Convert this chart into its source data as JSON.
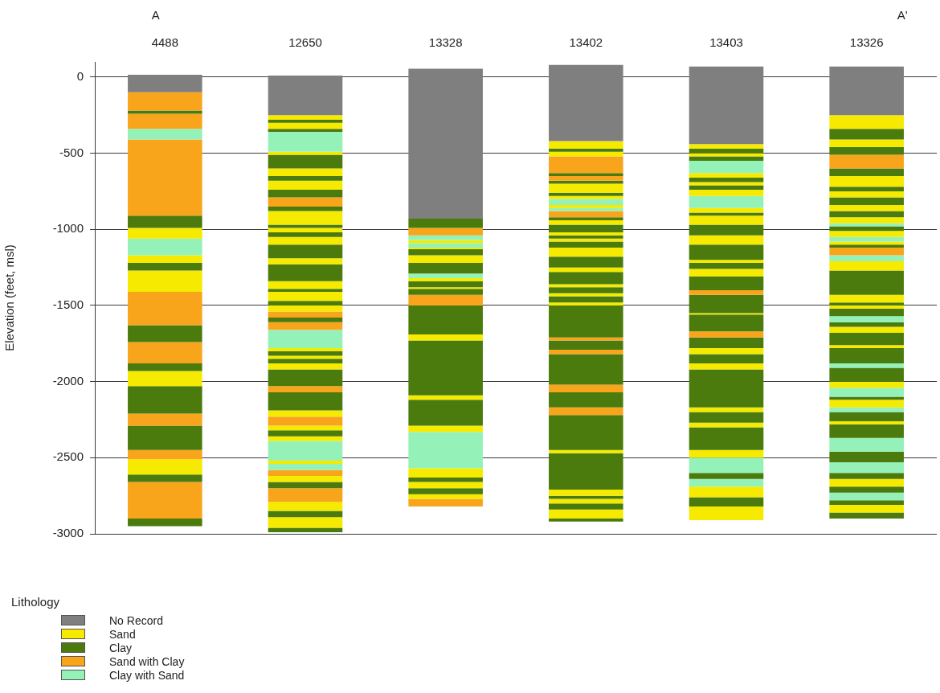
{
  "chart_data": {
    "type": "bar",
    "ylabel": "Elevation (feet, msl)",
    "legend_title": "Lithology",
    "legend": "bottom left",
    "grid": "y",
    "categories": [
      "4488",
      "12650",
      "13328",
      "13402",
      "13403",
      "13326"
    ],
    "annotations": [
      "A",
      "A'"
    ],
    "ylim": [
      -3000,
      100
    ],
    "yticks": [
      -3000,
      -2500,
      -2000,
      -1500,
      -1000,
      -500,
      0
    ],
    "series": [
      {
        "name": "No Record",
        "color": "#7f7f7f",
        "values": [
          null,
          null,
          null,
          null,
          null,
          null
        ]
      },
      {
        "name": "Sand",
        "color": "#f5ea00",
        "values": [
          null,
          null,
          null,
          null,
          null,
          null
        ]
      },
      {
        "name": "Clay",
        "color": "#4b7b0d",
        "values": [
          null,
          null,
          null,
          null,
          null,
          null
        ]
      },
      {
        "name": "Sand with Clay",
        "color": "#f8a51b",
        "values": [
          null,
          null,
          null,
          null,
          null,
          null
        ]
      },
      {
        "name": "Clay with Sand",
        "color": "#94f2b8",
        "values": [
          null,
          null,
          null,
          null,
          null,
          null
        ]
      },
      {
        "base": [
          15,
          10,
          55,
          80,
          70,
          70
        ],
        "values": [
          -115,
          -260,
          -985,
          -500,
          -510,
          -320
        ],
        "colors": [
          "#7f7f7f",
          "#7f7f7f",
          "#7f7f7f",
          "#7f7f7f",
          "#7f7f7f",
          "#7f7f7f"
        ]
      },
      {
        "base": [
          -100,
          -250,
          -930,
          -420,
          -440,
          -250
        ],
        "values": [
          -120,
          -30,
          -60,
          -50,
          -30,
          -90
        ],
        "colors": [
          "#f8a51b",
          "#f5ea00",
          "#4b7b0d",
          "#f5ea00",
          "#f5ea00",
          "#f5ea00"
        ]
      },
      {
        "base": [
          -220,
          -280,
          -990,
          -470,
          -470,
          -340
        ],
        "values": [
          -20,
          -20,
          -50,
          -20,
          -30,
          -70
        ],
        "colors": [
          "#4b7b0d",
          "#4b7b0d",
          "#f8a51b",
          "#4b7b0d",
          "#4b7b0d",
          "#4b7b0d"
        ]
      },
      {
        "base": [
          -240,
          -300,
          -1040,
          -490,
          -500,
          -410
        ],
        "values": [
          -100,
          -40,
          -30,
          -30,
          -20,
          -50
        ],
        "colors": [
          "#f8a51b",
          "#f5ea00",
          "#94f2b8",
          "#f5ea00",
          "#f5ea00",
          "#f5ea00"
        ]
      },
      {
        "base": [
          -340,
          -340,
          -1070,
          -520,
          -520,
          -460
        ],
        "values": [
          -70,
          -20,
          -20,
          -110,
          -30,
          -50
        ],
        "colors": [
          "#94f2b8",
          "#4b7b0d",
          "#f5ea00",
          "#f8a51b",
          "#4b7b0d",
          "#4b7b0d"
        ]
      },
      {
        "base": [
          -410,
          -360,
          -1090,
          -630,
          -550,
          -510
        ],
        "values": [
          -500,
          -130,
          -30,
          -20,
          -80,
          -90
        ],
        "colors": [
          "#f8a51b",
          "#94f2b8",
          "#94f2b8",
          "#4b7b0d",
          "#94f2b8",
          "#f8a51b"
        ]
      },
      {
        "base": [
          -910,
          -490,
          -1120,
          -650,
          -630,
          -600
        ],
        "values": [
          -80,
          -20,
          -10,
          -30,
          -30,
          -50
        ],
        "colors": [
          "#4b7b0d",
          "#f5ea00",
          "#f5ea00",
          "#f8a51b",
          "#f5ea00",
          "#4b7b0d"
        ]
      },
      {
        "base": [
          -990,
          -510,
          -1130,
          -680,
          -660,
          -650
        ],
        "values": [
          -70,
          -90,
          -40,
          -20,
          -30,
          -70
        ],
        "colors": [
          "#f5ea00",
          "#4b7b0d",
          "#4b7b0d",
          "#4b7b0d",
          "#4b7b0d",
          "#f5ea00"
        ]
      },
      {
        "base": [
          -1060,
          -600,
          -1170,
          -700,
          -690,
          -720
        ],
        "values": [
          -110,
          -50,
          -50,
          -60,
          -20,
          -30
        ],
        "colors": [
          "#94f2b8",
          "#f5ea00",
          "#f5ea00",
          "#f5ea00",
          "#f5ea00",
          "#4b7b0d"
        ]
      },
      {
        "base": [
          -1170,
          -650,
          -1220,
          -760,
          -710,
          -750
        ],
        "values": [
          -50,
          -30,
          -70,
          -20,
          -30,
          -40
        ],
        "colors": [
          "#f5ea00",
          "#4b7b0d",
          "#4b7b0d",
          "#4b7b0d",
          "#4b7b0d",
          "#f5ea00"
        ]
      },
      {
        "base": [
          -1220,
          -680,
          -1290,
          -780,
          -740,
          -790
        ],
        "values": [
          -50,
          -60,
          -30,
          -20,
          -40,
          -50
        ],
        "colors": [
          "#4b7b0d",
          "#f5ea00",
          "#94f2b8",
          "#f5ea00",
          "#f5ea00",
          "#4b7b0d"
        ]
      },
      {
        "base": [
          -1270,
          -740,
          -1320,
          -800,
          -780,
          -840
        ],
        "values": [
          -140,
          -50,
          -20,
          -40,
          -80,
          -40
        ],
        "colors": [
          "#f5ea00",
          "#4b7b0d",
          "#f5ea00",
          "#94f2b8",
          "#94f2b8",
          "#f5ea00"
        ]
      },
      {
        "base": [
          -1410,
          -790,
          -1340,
          -840,
          -860,
          -880
        ],
        "values": [
          -220,
          -60,
          -40,
          -20,
          -30,
          -40
        ],
        "colors": [
          "#f8a51b",
          "#f8a51b",
          "#4b7b0d",
          "#f5ea00",
          "#f5ea00",
          "#4b7b0d"
        ]
      },
      {
        "base": [
          -1630,
          -850,
          -1380,
          -860,
          -890,
          -920
        ],
        "values": [
          -110,
          -30,
          -10,
          -20,
          -20,
          -40
        ],
        "colors": [
          "#4b7b0d",
          "#4b7b0d",
          "#f5ea00",
          "#94f2b8",
          "#4b7b0d",
          "#f5ea00"
        ]
      },
      {
        "base": [
          -1740,
          -880,
          -1390,
          -880,
          -910,
          -960
        ],
        "values": [
          -140,
          -90,
          -40,
          -40,
          -60,
          -20
        ],
        "colors": [
          "#f8a51b",
          "#f5ea00",
          "#4b7b0d",
          "#f8a51b",
          "#f5ea00",
          "#94f2b8"
        ]
      },
      {
        "base": [
          -1880,
          -970,
          -1430,
          -920,
          -970,
          -980
        ],
        "values": [
          -50,
          -20,
          -70,
          -20,
          -70,
          -30
        ],
        "colors": [
          "#4b7b0d",
          "#4b7b0d",
          "#f8a51b",
          "#4b7b0d",
          "#4b7b0d",
          "#4b7b0d"
        ]
      },
      {
        "base": [
          -1930,
          -990,
          -1500,
          -940,
          -1040,
          -1010
        ],
        "values": [
          -100,
          -30,
          -190,
          -30,
          -60,
          -40
        ],
        "colors": [
          "#f5ea00",
          "#f5ea00",
          "#4b7b0d",
          "#f5ea00",
          "#f5ea00",
          "#f5ea00"
        ]
      },
      {
        "base": [
          -2030,
          -1020,
          -1690,
          -970,
          -1100,
          -1050
        ],
        "values": [
          -180,
          -30,
          -40,
          -50,
          -100,
          -30
        ],
        "colors": [
          "#4b7b0d",
          "#4b7b0d",
          "#f5ea00",
          "#4b7b0d",
          "#4b7b0d",
          "#94f2b8"
        ]
      },
      {
        "base": [
          -2210,
          -1050,
          -1730,
          -1020,
          -1200,
          -1080
        ],
        "values": [
          -80,
          -50,
          -360,
          -20,
          -20,
          -20
        ],
        "colors": [
          "#f8a51b",
          "#f5ea00",
          "#4b7b0d",
          "#f5ea00",
          "#f5ea00",
          "#f5ea00"
        ]
      },
      {
        "base": [
          -2290,
          -1100,
          -2090,
          -1040,
          -1220,
          -1100
        ],
        "values": [
          -160,
          -90,
          -30,
          -20,
          -40,
          -20
        ],
        "colors": [
          "#4b7b0d",
          "#4b7b0d",
          "#f5ea00",
          "#4b7b0d",
          "#4b7b0d",
          "#4b7b0d"
        ]
      },
      {
        "base": [
          -2450,
          -1190,
          -2120,
          -1060,
          -1260,
          -1120
        ],
        "values": [
          -60,
          -40,
          -170,
          -20,
          -50,
          -50
        ],
        "colors": [
          "#f8a51b",
          "#f5ea00",
          "#4b7b0d",
          "#f5ea00",
          "#f5ea00",
          "#f8a51b"
        ]
      },
      {
        "base": [
          -2510,
          -1230,
          -2290,
          -1080,
          -1310,
          -1170
        ],
        "values": [
          -100,
          -110,
          -40,
          -40,
          -90,
          -40
        ],
        "colors": [
          "#f5ea00",
          "#4b7b0d",
          "#f5ea00",
          "#4b7b0d",
          "#4b7b0d",
          "#94f2b8"
        ]
      },
      {
        "base": [
          -2610,
          -1340,
          -2330,
          -1120,
          -1400,
          -1210
        ],
        "values": [
          -50,
          -50,
          -240,
          -60,
          -30,
          -60
        ],
        "colors": [
          "#4b7b0d",
          "#f5ea00",
          "#94f2b8",
          "#f5ea00",
          "#f8a51b",
          "#f5ea00"
        ]
      },
      {
        "base": [
          -2660,
          -1390,
          -2570,
          -1180,
          -1430,
          -1270
        ],
        "values": [
          -240,
          -20,
          -60,
          -70,
          -120,
          -160
        ],
        "colors": [
          "#f8a51b",
          "#4b7b0d",
          "#f5ea00",
          "#4b7b0d",
          "#4b7b0d",
          "#4b7b0d"
        ]
      },
      {
        "base": [
          -2900,
          -1410,
          -2630,
          -1250,
          -1550,
          -1430
        ],
        "values": [
          -50,
          -60,
          -30,
          -30,
          -10,
          -50
        ],
        "colors": [
          "#4b7b0d",
          "#f5ea00",
          "#4b7b0d",
          "#f5ea00",
          "#f5ea00",
          "#f5ea00"
        ]
      },
      {
        "base": [
          null,
          -1470,
          -2660,
          -1280,
          -1560,
          -1480
        ],
        "values": [
          null,
          -30,
          -40,
          -80,
          -110,
          -20
        ],
        "colors": [
          null,
          "#4b7b0d",
          "#f5ea00",
          "#4b7b0d",
          "#4b7b0d",
          "#4b7b0d"
        ]
      },
      {
        "base": [
          null,
          -1500,
          -2700,
          -1360,
          -1670,
          -1500
        ],
        "values": [
          null,
          -40,
          -40,
          -20,
          -40,
          -20
        ],
        "colors": [
          null,
          "#f5ea00",
          "#4b7b0d",
          "#f5ea00",
          "#f8a51b",
          "#f5ea00"
        ]
      },
      {
        "base": [
          null,
          -1540,
          -2740,
          -1380,
          -1710,
          -1520
        ],
        "values": [
          null,
          -40,
          -30,
          -40,
          -70,
          -50
        ],
        "colors": [
          null,
          "#f8a51b",
          "#f5ea00",
          "#4b7b0d",
          "#4b7b0d",
          "#4b7b0d"
        ]
      },
      {
        "base": [
          null,
          -1580,
          -2770,
          -1420,
          -1780,
          -1570
        ],
        "values": [
          null,
          -30,
          -50,
          -20,
          -40,
          -40
        ],
        "colors": [
          null,
          "#4b7b0d",
          "#f8a51b",
          "#f5ea00",
          "#f5ea00",
          "#94f2b8"
        ]
      },
      {
        "base": [
          null,
          -1610,
          null,
          -1440,
          -1820,
          -1610
        ],
        "values": [
          null,
          -50,
          null,
          -40,
          -60,
          -30
        ],
        "colors": [
          null,
          "#f8a51b",
          null,
          "#4b7b0d",
          "#4b7b0d",
          "#4b7b0d"
        ]
      },
      {
        "base": [
          null,
          -1660,
          null,
          -1480,
          -1880,
          -1640
        ],
        "values": [
          null,
          -120,
          null,
          -20,
          -40,
          -40
        ],
        "colors": [
          null,
          "#94f2b8",
          null,
          "#f5ea00",
          "#f5ea00",
          "#f5ea00"
        ]
      },
      {
        "base": [
          null,
          -1780,
          null,
          -1500,
          -1920,
          -1680
        ],
        "values": [
          null,
          -20,
          null,
          -210,
          -250,
          -80
        ],
        "colors": [
          null,
          "#f5ea00",
          null,
          "#4b7b0d",
          "#4b7b0d",
          "#4b7b0d"
        ]
      },
      {
        "base": [
          null,
          -1800,
          null,
          -1710,
          -2170,
          -1760
        ],
        "values": [
          null,
          -30,
          null,
          -20,
          -30,
          -20
        ],
        "colors": [
          null,
          "#4b7b0d",
          null,
          "#f8a51b",
          "#f5ea00",
          "#f5ea00"
        ]
      },
      {
        "base": [
          null,
          -1830,
          null,
          -1730,
          -2200,
          -1780
        ],
        "values": [
          null,
          -20,
          null,
          -60,
          -70,
          -100
        ],
        "colors": [
          null,
          "#f5ea00",
          null,
          "#4b7b0d",
          "#4b7b0d",
          "#4b7b0d"
        ]
      },
      {
        "base": [
          null,
          -1850,
          null,
          -1790,
          -2270,
          -1880
        ],
        "values": [
          null,
          -30,
          null,
          -30,
          -30,
          -30
        ],
        "colors": [
          null,
          "#4b7b0d",
          null,
          "#f8a51b",
          "#f5ea00",
          "#94f2b8"
        ]
      },
      {
        "base": [
          null,
          -1880,
          null,
          -1820,
          -2300,
          -1910
        ],
        "values": [
          null,
          -40,
          null,
          -200,
          -150,
          -90
        ],
        "colors": [
          null,
          "#f5ea00",
          null,
          "#4b7b0d",
          "#4b7b0d",
          "#4b7b0d"
        ]
      },
      {
        "base": [
          null,
          -1920,
          null,
          -2020,
          -2450,
          -2000
        ],
        "values": [
          null,
          -110,
          null,
          -50,
          -50,
          -40
        ],
        "colors": [
          null,
          "#4b7b0d",
          null,
          "#f8a51b",
          "#f5ea00",
          "#f5ea00"
        ]
      },
      {
        "base": [
          null,
          -2030,
          null,
          -2070,
          -2500,
          -2040
        ],
        "values": [
          null,
          -40,
          null,
          -100,
          -100,
          -60
        ],
        "colors": [
          null,
          "#f8a51b",
          null,
          "#4b7b0d",
          "#94f2b8",
          "#94f2b8"
        ]
      },
      {
        "base": [
          null,
          -2070,
          null,
          -2170,
          -2600,
          -2100
        ],
        "values": [
          null,
          -120,
          null,
          -50,
          -40,
          -20
        ],
        "colors": [
          null,
          "#4b7b0d",
          null,
          "#f8a51b",
          "#4b7b0d",
          "#4b7b0d"
        ]
      },
      {
        "base": [
          null,
          -2190,
          null,
          -2220,
          -2640,
          -2120
        ],
        "values": [
          null,
          -40,
          null,
          -230,
          -50,
          -50
        ],
        "colors": [
          null,
          "#f5ea00",
          null,
          "#4b7b0d",
          "#94f2b8",
          "#f5ea00"
        ]
      },
      {
        "base": [
          null,
          -2230,
          null,
          -2450,
          -2690,
          -2170
        ],
        "values": [
          null,
          -60,
          null,
          -20,
          -70,
          -30
        ],
        "colors": [
          null,
          "#f8a51b",
          null,
          "#f5ea00",
          "#f5ea00",
          "#94f2b8"
        ]
      },
      {
        "base": [
          null,
          -2290,
          null,
          -2470,
          -2760,
          -2200
        ],
        "values": [
          null,
          -30,
          null,
          -240,
          -60,
          -60
        ],
        "colors": [
          null,
          "#f5ea00",
          null,
          "#4b7b0d",
          "#4b7b0d",
          "#4b7b0d"
        ]
      },
      {
        "base": [
          null,
          -2320,
          null,
          -2710,
          -2820,
          -2260
        ],
        "values": [
          null,
          -40,
          null,
          -40,
          -90,
          -20
        ],
        "colors": [
          null,
          "#4b7b0d",
          null,
          "#f5ea00",
          "#f5ea00",
          "#f5ea00"
        ]
      },
      {
        "base": [
          null,
          -2360,
          null,
          -2750,
          null,
          -2280
        ],
        "values": [
          null,
          -30,
          null,
          -20,
          null,
          -90
        ],
        "colors": [
          null,
          "#f5ea00",
          null,
          "#4b7b0d",
          null,
          "#4b7b0d"
        ]
      },
      {
        "base": [
          null,
          -2390,
          null,
          -2770,
          null,
          -2370
        ],
        "values": [
          null,
          -130,
          null,
          -30,
          null,
          -90
        ],
        "colors": [
          null,
          "#94f2b8",
          null,
          "#f5ea00",
          null,
          "#94f2b8"
        ]
      },
      {
        "base": [
          null,
          -2520,
          null,
          -2800,
          null,
          -2460
        ],
        "values": [
          null,
          -20,
          null,
          -40,
          null,
          -70
        ],
        "colors": [
          null,
          "#f5ea00",
          null,
          "#4b7b0d",
          null,
          "#4b7b0d"
        ]
      },
      {
        "base": [
          null,
          -2540,
          null,
          -2840,
          null,
          -2530
        ],
        "values": [
          null,
          -40,
          null,
          -60,
          null,
          -70
        ],
        "colors": [
          null,
          "#94f2b8",
          null,
          "#f5ea00",
          null,
          "#94f2b8"
        ]
      },
      {
        "base": [
          null,
          -2580,
          null,
          -2900,
          null,
          -2600
        ],
        "values": [
          null,
          -40,
          null,
          -20,
          null,
          -40
        ],
        "colors": [
          null,
          "#f8a51b",
          null,
          "#4b7b0d",
          null,
          "#4b7b0d"
        ]
      },
      {
        "base": [
          null,
          -2620,
          null,
          null,
          null,
          -2640
        ],
        "values": [
          null,
          -40,
          null,
          null,
          null,
          -50
        ],
        "colors": [
          null,
          "#f5ea00",
          null,
          null,
          null,
          "#f5ea00"
        ]
      },
      {
        "base": [
          null,
          -2660,
          null,
          null,
          null,
          -2690
        ],
        "values": [
          null,
          -40,
          null,
          null,
          null,
          -40
        ],
        "colors": [
          null,
          "#4b7b0d",
          null,
          null,
          null,
          "#4b7b0d"
        ]
      },
      {
        "base": [
          null,
          -2700,
          null,
          null,
          null,
          -2730
        ],
        "values": [
          null,
          -90,
          null,
          null,
          null,
          -50
        ],
        "colors": [
          null,
          "#f8a51b",
          null,
          null,
          null,
          "#94f2b8"
        ]
      },
      {
        "base": [
          null,
          -2790,
          null,
          null,
          null,
          -2780
        ],
        "values": [
          null,
          -60,
          null,
          null,
          null,
          -30
        ],
        "colors": [
          null,
          "#f5ea00",
          null,
          null,
          null,
          "#4b7b0d"
        ]
      },
      {
        "base": [
          null,
          -2850,
          null,
          null,
          null,
          -2810
        ],
        "values": [
          null,
          -40,
          null,
          null,
          null,
          -50
        ],
        "colors": [
          null,
          "#4b7b0d",
          null,
          null,
          null,
          "#f5ea00"
        ]
      },
      {
        "base": [
          null,
          -2890,
          null,
          null,
          null,
          -2860
        ],
        "values": [
          null,
          -70,
          null,
          null,
          null,
          -40
        ],
        "colors": [
          null,
          "#f5ea00",
          null,
          null,
          null,
          "#4b7b0d"
        ]
      },
      {
        "base": [
          null,
          -2960,
          null,
          null,
          null,
          null
        ],
        "values": [
          null,
          -30,
          null,
          null,
          null,
          null
        ],
        "colors": [
          null,
          "#4b7b0d",
          null,
          null,
          null,
          null
        ]
      }
    ]
  }
}
